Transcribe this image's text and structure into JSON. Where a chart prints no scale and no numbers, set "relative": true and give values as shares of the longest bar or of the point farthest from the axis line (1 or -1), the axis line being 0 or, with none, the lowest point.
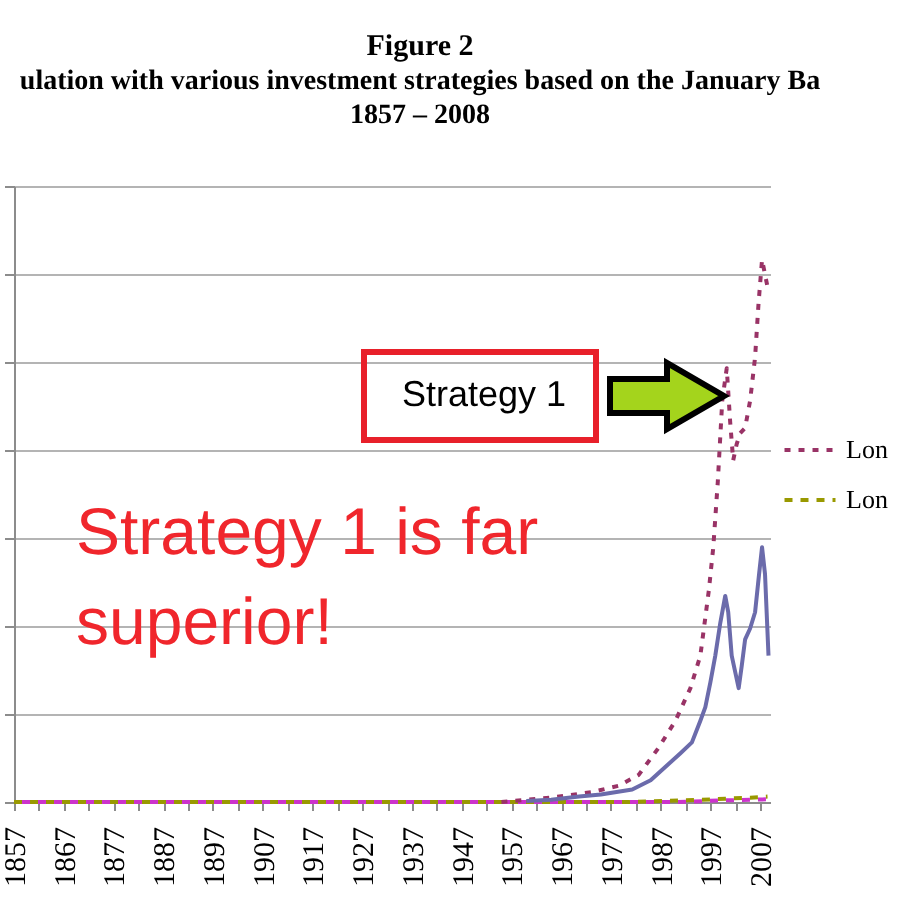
{
  "chart_data": {
    "type": "line",
    "title": "Figure 2",
    "subtitle": "ulation with various investment strategies based on the January Ba\n1857 – 2008",
    "relative": true,
    "xlim": [
      1857,
      2009
    ],
    "xticks": [
      1857,
      {
        "value": 1862,
        "label": null
      },
      1867,
      {
        "value": 1872,
        "label": null
      },
      1877,
      {
        "value": 1882,
        "label": null
      },
      1887,
      {
        "value": 1892,
        "label": null
      },
      1897,
      {
        "value": 1902,
        "label": null
      },
      1907,
      {
        "value": 1912,
        "label": null
      },
      1917,
      {
        "value": 1922,
        "label": null
      },
      1927,
      {
        "value": 1932,
        "label": null
      },
      1937,
      {
        "value": 1942,
        "label": null
      },
      1947,
      {
        "value": 1952,
        "label": null
      },
      1957,
      {
        "value": 1962,
        "label": null
      },
      1967,
      {
        "value": 1972,
        "label": null
      },
      1977,
      {
        "value": 1982,
        "label": null
      },
      1987,
      {
        "value": 1992,
        "label": null
      },
      1997,
      {
        "value": 2002,
        "label": null
      },
      2007
    ],
    "grid": "y",
    "legend": "right",
    "tick_labels": "x",
    "series": [
      {
        "name": "Lon",
        "color": "#993366",
        "line_style": "dotted",
        "x": [
          1955,
          1965,
          1973,
          1978.6,
          1982.6,
          1986.6,
          1990,
          1993,
          1995,
          1996.7,
          1997.6,
          1998.5,
          1999.4,
          2000.3,
          2001,
          2001.6,
          2002.3,
          2003,
          2004,
          2005,
          2006,
          2006.7,
          2007.4,
          2008.5
        ],
        "values": [
          0,
          0.008,
          0.018,
          0.03,
          0.05,
          0.1,
          0.15,
          0.21,
          0.27,
          0.39,
          0.47,
          0.59,
          0.74,
          0.8,
          0.7,
          0.63,
          0.66,
          0.68,
          0.69,
          0.74,
          0.82,
          0.92,
          1,
          0.95
        ]
      },
      {
        "color": "#6b6bab",
        "line_style": "solid",
        "x": [
          1960,
          1965,
          1970.6,
          1975,
          1981.3,
          1985,
          1988,
          1991,
          1993.3,
          1995,
          1996,
          1997,
          1998,
          1999,
          2000,
          2000.6,
          2001.3,
          2002.7,
          2003.3,
          2004,
          2005,
          2006,
          2006.8,
          2007.4,
          2008,
          2008.7
        ],
        "values": [
          0.002,
          0.004,
          0.01,
          0.014,
          0.023,
          0.04,
          0.065,
          0.09,
          0.11,
          0.15,
          0.175,
          0.22,
          0.27,
          0.33,
          0.38,
          0.35,
          0.27,
          0.21,
          0.25,
          0.3,
          0.32,
          0.35,
          0.42,
          0.47,
          0.42,
          0.27
        ]
      },
      {
        "name": "Lon",
        "color": "#999900",
        "line_style": "dashed",
        "x": [
          1857,
          1950,
          1980,
          1995,
          2000,
          2005,
          2008.5
        ],
        "values": [
          0,
          0,
          0,
          0.004,
          0.006,
          0.008,
          0.01
        ]
      },
      {
        "color": "#cc33cc",
        "line_style": "dashed",
        "x": [
          1857,
          1980,
          1990,
          2000,
          2008.5
        ],
        "values": [
          0,
          0,
          0,
          0.003,
          0.005
        ]
      }
    ],
    "annotations": [
      "Strategy 1",
      "Strategy 1 is far\nsuperior!"
    ]
  }
}
